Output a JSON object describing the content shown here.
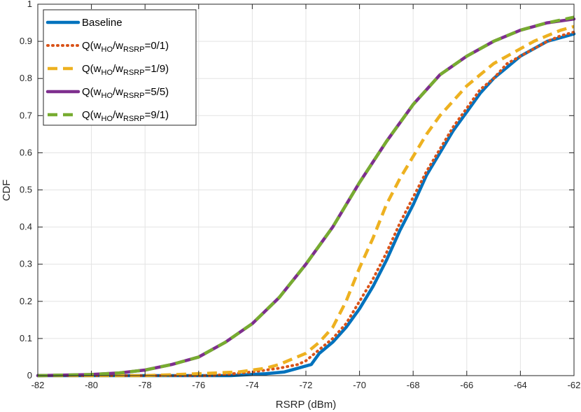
{
  "chart_data": {
    "type": "line",
    "xlabel": "RSRP (dBm)",
    "ylabel": "CDF",
    "xlim": [
      -82,
      -62
    ],
    "ylim": [
      0,
      1
    ],
    "x_ticks": [
      -82,
      -80,
      -78,
      -76,
      -74,
      -72,
      -70,
      -68,
      -66,
      -64,
      -62
    ],
    "y_ticks": [
      0,
      0.1,
      0.2,
      0.3,
      0.4,
      0.5,
      0.6,
      0.7,
      0.8,
      0.9,
      1
    ],
    "x_tick_labels": [
      "-82",
      "-80",
      "-78",
      "-76",
      "-74",
      "-72",
      "-70",
      "-68",
      "-66",
      "-64",
      "-62"
    ],
    "y_tick_labels": [
      "0",
      "0.1",
      "0.2",
      "0.3",
      "0.4",
      "0.5",
      "0.6",
      "0.7",
      "0.8",
      "0.9",
      "1"
    ],
    "grid": true,
    "legend_position": "top-left",
    "series": [
      {
        "label_main": "Baseline",
        "label_sub": "",
        "label_end": "",
        "color": "#0072BD",
        "style": "solid",
        "x": [
          -74.8,
          -73.5,
          -72.8,
          -72.3,
          -71.8,
          -71.5,
          -71.0,
          -70.5,
          -70.0,
          -69.5,
          -69.0,
          -68.5,
          -68.0,
          -67.5,
          -67.0,
          -66.5,
          -66.0,
          -65.5,
          -65.0,
          -64.5,
          -64.0,
          -63.5,
          -63.0,
          -62.5,
          -62.0
        ],
        "y": [
          0.0,
          0.005,
          0.01,
          0.02,
          0.03,
          0.06,
          0.09,
          0.13,
          0.18,
          0.24,
          0.31,
          0.39,
          0.46,
          0.54,
          0.6,
          0.66,
          0.71,
          0.76,
          0.8,
          0.83,
          0.86,
          0.88,
          0.9,
          0.91,
          0.92
        ]
      },
      {
        "label_main": "Q(w",
        "label_sub": "HO",
        "label_mid": "/w",
        "label_sub2": "RSRP",
        "label_end": "=0/1)",
        "color": "#D95319",
        "style": "dotted",
        "x": [
          -75.5,
          -74.0,
          -73.0,
          -72.3,
          -72.0,
          -71.5,
          -71.0,
          -70.5,
          -70.0,
          -69.5,
          -69.0,
          -68.5,
          -68.0,
          -67.5,
          -67.0,
          -66.5,
          -66.0,
          -65.5,
          -65.0,
          -64.5,
          -64.0,
          -63.5,
          -63.0,
          -62.5,
          -62.0
        ],
        "y": [
          0.0,
          0.01,
          0.02,
          0.03,
          0.04,
          0.07,
          0.1,
          0.14,
          0.2,
          0.26,
          0.33,
          0.41,
          0.48,
          0.55,
          0.61,
          0.67,
          0.72,
          0.77,
          0.8,
          0.84,
          0.86,
          0.88,
          0.9,
          0.915,
          0.925
        ]
      },
      {
        "label_main": "Q(w",
        "label_sub": "HO",
        "label_mid": "/w",
        "label_sub2": "RSRP",
        "label_end": "=1/9)",
        "color": "#EDB120",
        "style": "dashed",
        "x": [
          -78.0,
          -76.0,
          -74.5,
          -73.5,
          -73.0,
          -72.0,
          -71.5,
          -71.0,
          -70.5,
          -70.0,
          -69.5,
          -69.0,
          -68.5,
          -68.0,
          -67.5,
          -67.0,
          -66.5,
          -66.0,
          -65.5,
          -65.0,
          -64.5,
          -64.0,
          -63.5,
          -63.0,
          -62.5,
          -62.0
        ],
        "y": [
          0.0,
          0.005,
          0.01,
          0.02,
          0.03,
          0.06,
          0.09,
          0.13,
          0.2,
          0.29,
          0.37,
          0.46,
          0.53,
          0.59,
          0.65,
          0.7,
          0.74,
          0.78,
          0.81,
          0.84,
          0.86,
          0.88,
          0.9,
          0.915,
          0.93,
          0.94
        ]
      },
      {
        "label_main": "Q(w",
        "label_sub": "HO",
        "label_mid": "/w",
        "label_sub2": "RSRP",
        "label_end": "=5/5)",
        "color": "#7E2F8E",
        "style": "solid",
        "x": [
          -82.0,
          -80.0,
          -79.0,
          -78.0,
          -77.0,
          -76.0,
          -75.0,
          -74.0,
          -73.0,
          -72.0,
          -71.0,
          -70.0,
          -69.0,
          -68.0,
          -67.0,
          -66.0,
          -65.0,
          -64.0,
          -63.0,
          -62.0
        ],
        "y": [
          0.0,
          0.003,
          0.007,
          0.015,
          0.03,
          0.05,
          0.09,
          0.14,
          0.21,
          0.3,
          0.4,
          0.52,
          0.63,
          0.73,
          0.81,
          0.86,
          0.9,
          0.93,
          0.95,
          0.96
        ]
      },
      {
        "label_main": "Q(w",
        "label_sub": "HO",
        "label_mid": "/w",
        "label_sub2": "RSRP",
        "label_end": "=9/1)",
        "color": "#77AC30",
        "style": "dashed",
        "x": [
          -82.0,
          -80.0,
          -79.0,
          -78.0,
          -77.0,
          -76.0,
          -75.0,
          -74.0,
          -73.0,
          -72.0,
          -71.0,
          -70.0,
          -69.0,
          -68.0,
          -67.0,
          -66.0,
          -65.0,
          -64.0,
          -63.0,
          -62.0
        ],
        "y": [
          0.0,
          0.003,
          0.007,
          0.015,
          0.03,
          0.05,
          0.09,
          0.14,
          0.21,
          0.3,
          0.4,
          0.52,
          0.63,
          0.73,
          0.81,
          0.86,
          0.9,
          0.93,
          0.95,
          0.965
        ]
      }
    ]
  }
}
